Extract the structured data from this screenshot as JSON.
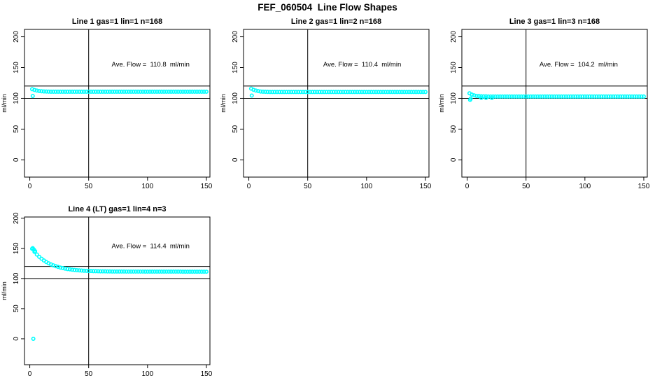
{
  "figure": {
    "title": "FEF_060504  Line Flow Shapes"
  },
  "chart_data": [
    {
      "type": "scatter",
      "title": "Line 1 gas=1 lin=1 n=168",
      "annotation": "Ave. Flow =  110.8  ml/min",
      "ave_flow_ml_min": 110.8,
      "n": 168,
      "xlabel": "",
      "ylabel": "ml/min",
      "xlim": [
        -4.5,
        153
      ],
      "ylim": [
        -28,
        212
      ],
      "xticks": [
        0,
        50,
        100,
        150
      ],
      "yticks": [
        0,
        50,
        100,
        150,
        200
      ],
      "hlines": [
        120,
        100
      ],
      "vlines": [
        50
      ],
      "grid": false,
      "marker_color": "#00FFFF",
      "annotation_pos": {
        "fx": 0.68,
        "fy": 0.25
      },
      "x": [
        2,
        4,
        6,
        8,
        10,
        12,
        14,
        16,
        18,
        20,
        22,
        24,
        26,
        28,
        30,
        32,
        34,
        36,
        38,
        40,
        42,
        44,
        46,
        48,
        50,
        52,
        54,
        56,
        58,
        60,
        62,
        64,
        66,
        68,
        70,
        72,
        74,
        76,
        78,
        80,
        82,
        84,
        86,
        88,
        90,
        92,
        94,
        96,
        98,
        100,
        102,
        104,
        106,
        108,
        110,
        112,
        114,
        116,
        118,
        120,
        122,
        124,
        126,
        128,
        130,
        132,
        134,
        136,
        138,
        140,
        142,
        144,
        146,
        148,
        150
      ],
      "y": [
        114.9,
        113.6,
        112.6,
        111.9,
        111.5,
        111.2,
        111.0,
        110.9,
        110.8,
        110.8,
        110.8,
        110.8,
        110.8,
        110.8,
        110.8,
        110.8,
        110.8,
        110.8,
        110.8,
        110.8,
        110.8,
        110.8,
        110.8,
        110.8,
        110.8,
        110.8,
        110.8,
        110.8,
        110.8,
        110.8,
        110.8,
        110.8,
        110.8,
        110.8,
        110.8,
        110.8,
        110.8,
        110.8,
        110.8,
        110.8,
        110.8,
        110.8,
        110.8,
        110.8,
        110.8,
        110.8,
        110.8,
        110.8,
        110.8,
        110.8,
        110.8,
        110.8,
        110.8,
        110.8,
        110.8,
        110.8,
        110.8,
        110.8,
        110.8,
        110.8,
        110.8,
        110.8,
        110.8,
        110.8,
        110.8,
        110.8,
        110.8,
        110.8,
        110.8,
        110.8,
        110.8,
        110.8,
        110.8,
        110.8,
        110.8
      ],
      "extra_points": [
        [
          2.5,
          103.8
        ]
      ]
    },
    {
      "type": "scatter",
      "title": "Line 2 gas=1 lin=2 n=168",
      "annotation": "Ave. Flow =  110.4  ml/min",
      "ave_flow_ml_min": 110.4,
      "n": 168,
      "xlabel": "",
      "ylabel": "ml/min",
      "xlim": [
        -4.5,
        153
      ],
      "ylim": [
        -28,
        212
      ],
      "xticks": [
        0,
        50,
        100,
        150
      ],
      "yticks": [
        0,
        50,
        100,
        150,
        200
      ],
      "hlines": [
        120,
        100
      ],
      "vlines": [
        50
      ],
      "grid": false,
      "marker_color": "#00FFFF",
      "annotation_pos": {
        "fx": 0.64,
        "fy": 0.25
      },
      "x": [
        2,
        4,
        6,
        8,
        10,
        12,
        14,
        16,
        18,
        20,
        22,
        24,
        26,
        28,
        30,
        32,
        34,
        36,
        38,
        40,
        42,
        44,
        46,
        48,
        50,
        52,
        54,
        56,
        58,
        60,
        62,
        64,
        66,
        68,
        70,
        72,
        74,
        76,
        78,
        80,
        82,
        84,
        86,
        88,
        90,
        92,
        94,
        96,
        98,
        100,
        102,
        104,
        106,
        108,
        110,
        112,
        114,
        116,
        118,
        120,
        122,
        124,
        126,
        128,
        130,
        132,
        134,
        136,
        138,
        140,
        142,
        144,
        146,
        148,
        150
      ],
      "y": [
        115.8,
        113.9,
        112.6,
        111.7,
        111.1,
        110.8,
        110.6,
        110.5,
        110.4,
        110.4,
        110.4,
        110.4,
        110.4,
        110.4,
        110.4,
        110.4,
        110.4,
        110.4,
        110.4,
        110.4,
        110.4,
        110.4,
        110.4,
        110.4,
        110.4,
        110.4,
        110.4,
        110.4,
        110.4,
        110.4,
        110.4,
        110.4,
        110.4,
        110.4,
        110.4,
        110.4,
        110.4,
        110.4,
        110.4,
        110.4,
        110.4,
        110.4,
        110.4,
        110.4,
        110.4,
        110.4,
        110.4,
        110.4,
        110.4,
        110.4,
        110.4,
        110.4,
        110.4,
        110.4,
        110.4,
        110.4,
        110.4,
        110.4,
        110.4,
        110.4,
        110.4,
        110.4,
        110.4,
        110.4,
        110.4,
        110.4,
        110.4,
        110.4,
        110.4,
        110.4,
        110.4,
        110.4,
        110.4,
        110.4,
        110.4
      ],
      "extra_points": [
        [
          2.5,
          104.5
        ]
      ]
    },
    {
      "type": "scatter",
      "title": "Line 3 gas=1 lin=3 n=168",
      "annotation": "Ave. Flow =  104.2  ml/min",
      "ave_flow_ml_min": 104.2,
      "n": 168,
      "xlabel": "",
      "ylabel": "ml/min",
      "xlim": [
        -4.5,
        153
      ],
      "ylim": [
        -28,
        212
      ],
      "xticks": [
        0,
        50,
        100,
        150
      ],
      "yticks": [
        0,
        50,
        100,
        150,
        200
      ],
      "hlines": [
        120,
        100
      ],
      "vlines": [
        50
      ],
      "grid": false,
      "marker_color": "#00FFFF",
      "annotation_pos": {
        "fx": 0.63,
        "fy": 0.25
      },
      "x": [
        2,
        4,
        6,
        8,
        10,
        12,
        14,
        16,
        18,
        20,
        22,
        24,
        26,
        28,
        30,
        32,
        34,
        36,
        38,
        40,
        42,
        44,
        46,
        48,
        50,
        52,
        54,
        56,
        58,
        60,
        62,
        64,
        66,
        68,
        70,
        72,
        74,
        76,
        78,
        80,
        82,
        84,
        86,
        88,
        90,
        92,
        94,
        96,
        98,
        100,
        102,
        104,
        106,
        108,
        110,
        112,
        114,
        116,
        118,
        120,
        122,
        124,
        126,
        128,
        130,
        132,
        134,
        136,
        138,
        140,
        142,
        144,
        146,
        148,
        150
      ],
      "y": [
        108.2,
        106.1,
        104.8,
        104.0,
        103.6,
        103.4,
        103.3,
        103.2,
        103.0,
        103.0,
        103.0,
        103.0,
        103.0,
        103.0,
        103.0,
        103.0,
        103.0,
        103.0,
        103.0,
        103.0,
        103.0,
        103.0,
        103.0,
        103.0,
        103.0,
        103.0,
        103.0,
        103.0,
        103.0,
        103.0,
        103.0,
        103.0,
        103.0,
        103.0,
        103.0,
        103.0,
        103.0,
        103.0,
        103.0,
        103.0,
        103.0,
        103.0,
        103.0,
        103.0,
        103.0,
        103.0,
        103.0,
        103.0,
        103.0,
        103.0,
        103.0,
        103.0,
        103.0,
        103.0,
        103.0,
        103.0,
        103.0,
        103.0,
        103.0,
        103.0,
        103.0,
        103.0,
        103.0,
        103.0,
        103.0,
        103.0,
        103.0,
        103.0,
        103.0,
        103.0,
        103.0,
        103.0,
        103.0,
        103.0,
        103.0
      ],
      "extra_points": [
        [
          2.5,
          97.5
        ],
        [
          3,
          99.5
        ],
        [
          12,
          100.8
        ],
        [
          16,
          100.6
        ],
        [
          21,
          100.7
        ]
      ]
    },
    {
      "type": "scatter",
      "title": "Line 4 (LT) gas=1 lin=4 n=3",
      "annotation": "Ave. Flow =  114.4  ml/min",
      "ave_flow_ml_min": 114.4,
      "n": 3,
      "xlabel": "",
      "ylabel": "ml/min",
      "xlim": [
        -4.5,
        153
      ],
      "ylim": [
        -43,
        202
      ],
      "xticks": [
        0,
        50,
        100,
        150
      ],
      "yticks": [
        0,
        50,
        100,
        150,
        200
      ],
      "hlines": [
        120,
        100
      ],
      "vlines": [
        50
      ],
      "grid": false,
      "marker_color": "#00FFFF",
      "annotation_pos": {
        "fx": 0.68,
        "fy": 0.21
      },
      "x": [
        2,
        4,
        6,
        8,
        10,
        12,
        14,
        16,
        18,
        20,
        22,
        24,
        26,
        28,
        30,
        32,
        34,
        36,
        38,
        40,
        42,
        44,
        46,
        48,
        50,
        52,
        54,
        56,
        58,
        60,
        62,
        64,
        66,
        68,
        70,
        72,
        74,
        76,
        78,
        80,
        82,
        84,
        86,
        88,
        90,
        92,
        94,
        96,
        98,
        100,
        102,
        104,
        106,
        108,
        110,
        112,
        114,
        116,
        118,
        120,
        122,
        124,
        126,
        128,
        130,
        132,
        134,
        136,
        138,
        140,
        142,
        144,
        146,
        148,
        150
      ],
      "y": [
        149.3,
        144.2,
        139.8,
        136.0,
        132.7,
        129.9,
        127.4,
        125.2,
        123.4,
        121.8,
        120.4,
        119.2,
        118.1,
        117.2,
        116.4,
        115.7,
        115.2,
        114.6,
        114.2,
        113.8,
        113.5,
        113.2,
        112.9,
        112.7,
        112.5,
        112.4,
        112.2,
        112.1,
        112.0,
        111.9,
        111.8,
        111.8,
        111.7,
        111.7,
        111.6,
        111.6,
        111.6,
        111.6,
        111.6,
        111.6,
        111.5,
        111.5,
        111.5,
        111.5,
        111.5,
        111.5,
        111.5,
        111.5,
        111.4,
        111.4,
        111.4,
        111.4,
        111.4,
        111.4,
        111.4,
        111.4,
        111.4,
        111.4,
        111.4,
        111.4,
        111.4,
        111.4,
        111.4,
        111.4,
        111.3,
        111.3,
        111.3,
        111.3,
        111.3,
        111.3,
        111.3,
        111.3,
        111.3,
        111.3,
        111.3
      ],
      "extra_points": [
        [
          3,
          0
        ],
        [
          2.5,
          150.3
        ],
        [
          3.5,
          147.8
        ],
        [
          4.5,
          145.2
        ]
      ]
    }
  ]
}
